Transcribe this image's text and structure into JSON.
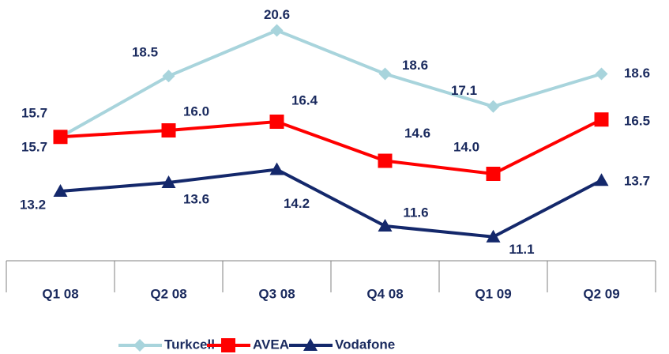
{
  "chart_data": {
    "type": "line",
    "categories": [
      "Q1 08",
      "Q2 08",
      "Q3 08",
      "Q4 08",
      "Q1 09",
      "Q2 09"
    ],
    "ylim": [
      10,
      22
    ],
    "legend": "bottom",
    "series": [
      {
        "name": "Turkcell",
        "color": "#a8d4dc",
        "marker": "diamond",
        "values": [
          15.7,
          18.5,
          20.6,
          18.6,
          17.1,
          18.6
        ],
        "value_labels": [
          "15.7",
          "18.5",
          "20.6",
          "18.6",
          "17.1",
          "18.6"
        ]
      },
      {
        "name": "AVEA",
        "color": "#ff0000",
        "marker": "square",
        "values": [
          15.7,
          16.0,
          16.4,
          14.6,
          14.0,
          16.5
        ],
        "value_labels": [
          "15.7",
          "16.0",
          "16.4",
          "14.6",
          "14.0",
          "16.5"
        ]
      },
      {
        "name": "Vodafone",
        "color": "#14286b",
        "marker": "triangle",
        "values": [
          13.2,
          13.6,
          14.2,
          11.6,
          11.1,
          13.7
        ],
        "value_labels": [
          "13.2",
          "13.6",
          "14.2",
          "11.6",
          "11.1",
          "13.7"
        ]
      }
    ]
  }
}
